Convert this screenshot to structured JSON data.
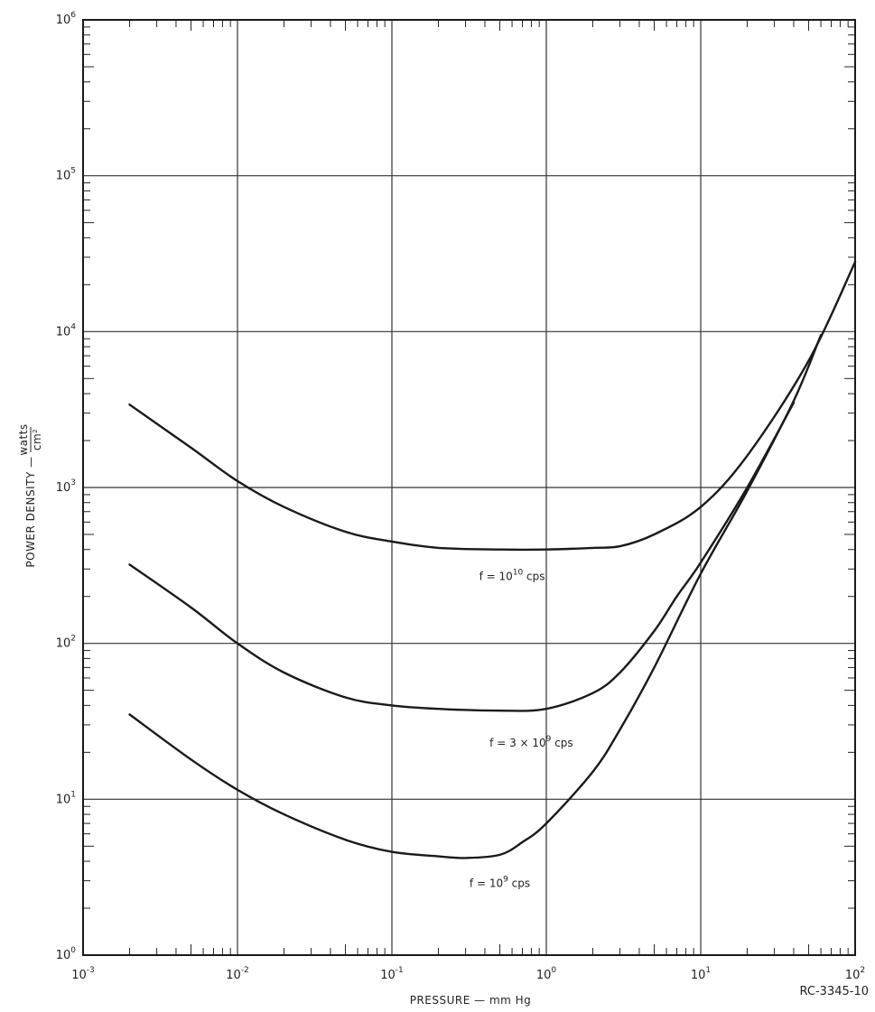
{
  "chart_data": {
    "type": "line",
    "x_scale": "log",
    "y_scale": "log",
    "xlim": [
      0.001,
      100
    ],
    "ylim": [
      1,
      1000000
    ],
    "grid": true,
    "x_ticks": [
      {
        "base": "10",
        "exp": "-3",
        "value": 0.001
      },
      {
        "base": "10",
        "exp": "-2",
        "value": 0.01
      },
      {
        "base": "10",
        "exp": "-1",
        "value": 0.1
      },
      {
        "base": "10",
        "exp": "0",
        "value": 1
      },
      {
        "base": "10",
        "exp": "1",
        "value": 10
      },
      {
        "base": "10",
        "exp": "2",
        "value": 100
      }
    ],
    "y_ticks": [
      {
        "base": "10",
        "exp": "0",
        "value": 1
      },
      {
        "base": "10",
        "exp": "1",
        "value": 10
      },
      {
        "base": "10",
        "exp": "2",
        "value": 100
      },
      {
        "base": "10",
        "exp": "3",
        "value": 1000
      },
      {
        "base": "10",
        "exp": "4",
        "value": 10000
      },
      {
        "base": "10",
        "exp": "5",
        "value": 100000
      },
      {
        "base": "10",
        "exp": "6",
        "value": 1000000
      }
    ],
    "xlabel": "PRESSURE — mm Hg",
    "ylabel": "POWER DENSITY —",
    "ylabel_fraction": {
      "numerator": "watts",
      "denominator": "cm",
      "denominator_exp": "2"
    },
    "figure_id": "RC-3345-10",
    "series": [
      {
        "label_prefix": "f = 10",
        "label_exp": "10",
        "label_suffix": " cps",
        "x": [
          0.002,
          0.005,
          0.01,
          0.02,
          0.05,
          0.1,
          0.2,
          0.5,
          1,
          2,
          3,
          5,
          10,
          20,
          50,
          100
        ],
        "y": [
          3400,
          1800,
          1100,
          750,
          520,
          450,
          410,
          400,
          400,
          410,
          420,
          500,
          750,
          1600,
          6500,
          28000
        ]
      },
      {
        "label_prefix": "f = 3 × 10",
        "label_exp": "9",
        "label_suffix": " cps",
        "x": [
          0.002,
          0.005,
          0.01,
          0.02,
          0.05,
          0.1,
          0.2,
          0.5,
          1,
          2,
          3,
          5,
          7,
          10,
          20,
          40
        ],
        "y": [
          320,
          170,
          100,
          65,
          45,
          40,
          38,
          37,
          38,
          48,
          65,
          120,
          200,
          330,
          1000,
          3500
        ]
      },
      {
        "label_prefix": "f = 10",
        "label_exp": "9",
        "label_suffix": " cps",
        "x": [
          0.002,
          0.005,
          0.01,
          0.02,
          0.05,
          0.1,
          0.2,
          0.3,
          0.5,
          0.7,
          1,
          2,
          3,
          5,
          10,
          20,
          40,
          60
        ],
        "y": [
          35,
          18,
          11.5,
          8,
          5.5,
          4.6,
          4.3,
          4.2,
          4.4,
          5.3,
          7,
          15,
          28,
          70,
          280,
          950,
          3600,
          9500
        ]
      }
    ]
  }
}
